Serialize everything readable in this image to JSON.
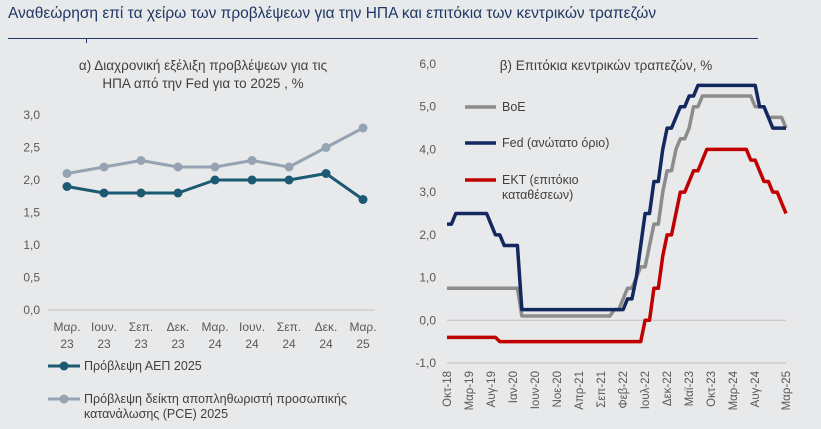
{
  "page_title": "Αναθεώρηση επί τα χείρω των προβλέψεων για την ΗΠΑ και επιτόκια των κεντρικών τραπεζών",
  "colors": {
    "dark_teal": "#1c5a73",
    "grey_blue": "#95a3b3",
    "boe_grey": "#8c8c8c",
    "fed_navy": "#13285e",
    "ecb_red": "#c00000",
    "background": "#e8e9ea"
  },
  "chart_data": [
    {
      "type": "line",
      "title": "α) Διαχρονική εξέλιξη προβλέψεων για τις ΗΠΑ από την Fed για το 2025 , %",
      "title_lines": [
        "α) Διαχρονική εξέλιξη προβλέψεων για τις",
        "ΗΠΑ από την Fed για το 2025 , %"
      ],
      "categories": [
        [
          "Μαρ.",
          "23"
        ],
        [
          "Ιουν.",
          "23"
        ],
        [
          "Σεπ.",
          "23"
        ],
        [
          "Δεκ.",
          "23"
        ],
        [
          "Μαρ.",
          "24"
        ],
        [
          "Ιουν.",
          "24"
        ],
        [
          "Σεπ.",
          "24"
        ],
        [
          "Δεκ.",
          "24"
        ],
        [
          "Μαρ.",
          "25"
        ]
      ],
      "ylim": [
        0,
        3
      ],
      "yticks": [
        "0,0",
        "0,5",
        "1,0",
        "1,5",
        "2,0",
        "2,5",
        "3,0"
      ],
      "series": [
        {
          "name": "Πρόβλεψη ΑΕΠ 2025",
          "values": [
            1.9,
            1.8,
            1.8,
            1.8,
            2.0,
            2.0,
            2.0,
            2.1,
            1.7
          ],
          "color": "#1c5a73"
        },
        {
          "name": "Πρόβλεψη δείκτη αποπληθωριστή προσωπικής κατανάλωσης (PCE) 2025",
          "name_lines": [
            "Πρόβλεψη δείκτη αποπληθωριστή προσωπικής",
            "κατανάλωσης (PCE) 2025"
          ],
          "values": [
            2.1,
            2.2,
            2.3,
            2.2,
            2.2,
            2.3,
            2.2,
            2.5,
            2.8
          ],
          "color": "#95a3b3"
        }
      ],
      "legend": "bottom",
      "grid": false
    },
    {
      "type": "line",
      "title": "β) Επιτόκια κεντρικών τραπεζών, %",
      "x_tick_labels": [
        "Οκτ-18",
        "Μαρ-19",
        "Αυγ-19",
        "Ιαν-20",
        "Ιουν-20",
        "Νοε-20",
        "Απρ-21",
        "Σεπ-21",
        "Φεβ-22",
        "Ιουλ-22",
        "Δεκ-22",
        "Μαϊ-23",
        "Οκτ-23",
        "Μαρ-24",
        "Αυγ-24",
        "Μαρ-25"
      ],
      "ylim": [
        -1,
        6
      ],
      "yticks": [
        "-1,0",
        "0,0",
        "1,0",
        "2,0",
        "3,0",
        "4,0",
        "5,0",
        "6,0"
      ],
      "series": [
        {
          "name": "BoE",
          "color": "#8c8c8c",
          "points": [
            [
              "Οκτ-18",
              0.75
            ],
            [
              "Ιαν-20",
              0.75
            ],
            [
              "Μαρ-20",
              0.1
            ],
            [
              "Νοε-21",
              0.1
            ],
            [
              "Δεκ-21",
              0.25
            ],
            [
              "Φεβ-22",
              0.5
            ],
            [
              "Μαρ-22",
              0.75
            ],
            [
              "Μαϊ-22",
              1.0
            ],
            [
              "Ιουν-22",
              1.25
            ],
            [
              "Αυγ-22",
              1.75
            ],
            [
              "Σεπ-22",
              2.25
            ],
            [
              "Νοε-22",
              3.0
            ],
            [
              "Δεκ-22",
              3.5
            ],
            [
              "Φεβ-23",
              4.0
            ],
            [
              "Μαρ-23",
              4.25
            ],
            [
              "Μαϊ-23",
              4.5
            ],
            [
              "Ιουν-23",
              5.0
            ],
            [
              "Αυγ-23",
              5.25
            ],
            [
              "Ιουλ-24",
              5.25
            ],
            [
              "Αυγ-24",
              5.0
            ],
            [
              "Οκτ-24",
              5.0
            ],
            [
              "Νοε-24",
              4.75
            ],
            [
              "Ιαν-25",
              4.75
            ],
            [
              "Μαρ-25",
              4.5
            ]
          ]
        },
        {
          "name": "Fed (ανώτατο όριο)",
          "color": "#13285e",
          "points": [
            [
              "Οκτ-18",
              2.25
            ],
            [
              "Δεκ-18",
              2.5
            ],
            [
              "Ιουν-19",
              2.5
            ],
            [
              "Αυγ-19",
              2.25
            ],
            [
              "Σεπ-19",
              2.0
            ],
            [
              "Νοε-19",
              1.75
            ],
            [
              "Φεβ-20",
              1.75
            ],
            [
              "Μαρ-20",
              0.25
            ],
            [
              "Φεβ-22",
              0.25
            ],
            [
              "Μαρ-22",
              0.5
            ],
            [
              "Μαϊ-22",
              1.0
            ],
            [
              "Ιουν-22",
              1.75
            ],
            [
              "Ιουλ-22",
              2.5
            ],
            [
              "Σεπ-22",
              3.25
            ],
            [
              "Νοε-22",
              4.0
            ],
            [
              "Δεκ-22",
              4.5
            ],
            [
              "Φεβ-23",
              4.75
            ],
            [
              "Μαρ-23",
              5.0
            ],
            [
              "Μαϊ-23",
              5.25
            ],
            [
              "Ιουλ-23",
              5.5
            ],
            [
              "Αυγ-24",
              5.5
            ],
            [
              "Σεπ-24",
              5.0
            ],
            [
              "Νοε-24",
              4.75
            ],
            [
              "Δεκ-24",
              4.5
            ],
            [
              "Μαρ-25",
              4.5
            ]
          ]
        },
        {
          "name": "ΕΚΤ (επιτόκιο καταθέσεων)",
          "name_lines": [
            "ΕΚΤ (επιτόκιο",
            "καταθέσεων)"
          ],
          "color": "#c00000",
          "points": [
            [
              "Οκτ-18",
              -0.4
            ],
            [
              "Σεπ-19",
              -0.4
            ],
            [
              "Οκτ-19",
              -0.5
            ],
            [
              "Ιουν-22",
              -0.5
            ],
            [
              "Ιουλ-22",
              0.0
            ],
            [
              "Σεπ-22",
              0.75
            ],
            [
              "Νοε-22",
              1.5
            ],
            [
              "Δεκ-22",
              2.0
            ],
            [
              "Φεβ-23",
              2.5
            ],
            [
              "Μαρ-23",
              3.0
            ],
            [
              "Μαϊ-23",
              3.25
            ],
            [
              "Ιουν-23",
              3.5
            ],
            [
              "Αυγ-23",
              3.75
            ],
            [
              "Σεπ-23",
              4.0
            ],
            [
              "Ιουν-24",
              4.0
            ],
            [
              "Ιουλ-24",
              3.75
            ],
            [
              "Σεπ-24",
              3.5
            ],
            [
              "Οκτ-24",
              3.25
            ],
            [
              "Δεκ-24",
              3.0
            ],
            [
              "Φεβ-25",
              2.75
            ],
            [
              "Μαρ-25",
              2.5
            ]
          ]
        }
      ],
      "legend": "left-inside",
      "grid": false
    }
  ]
}
